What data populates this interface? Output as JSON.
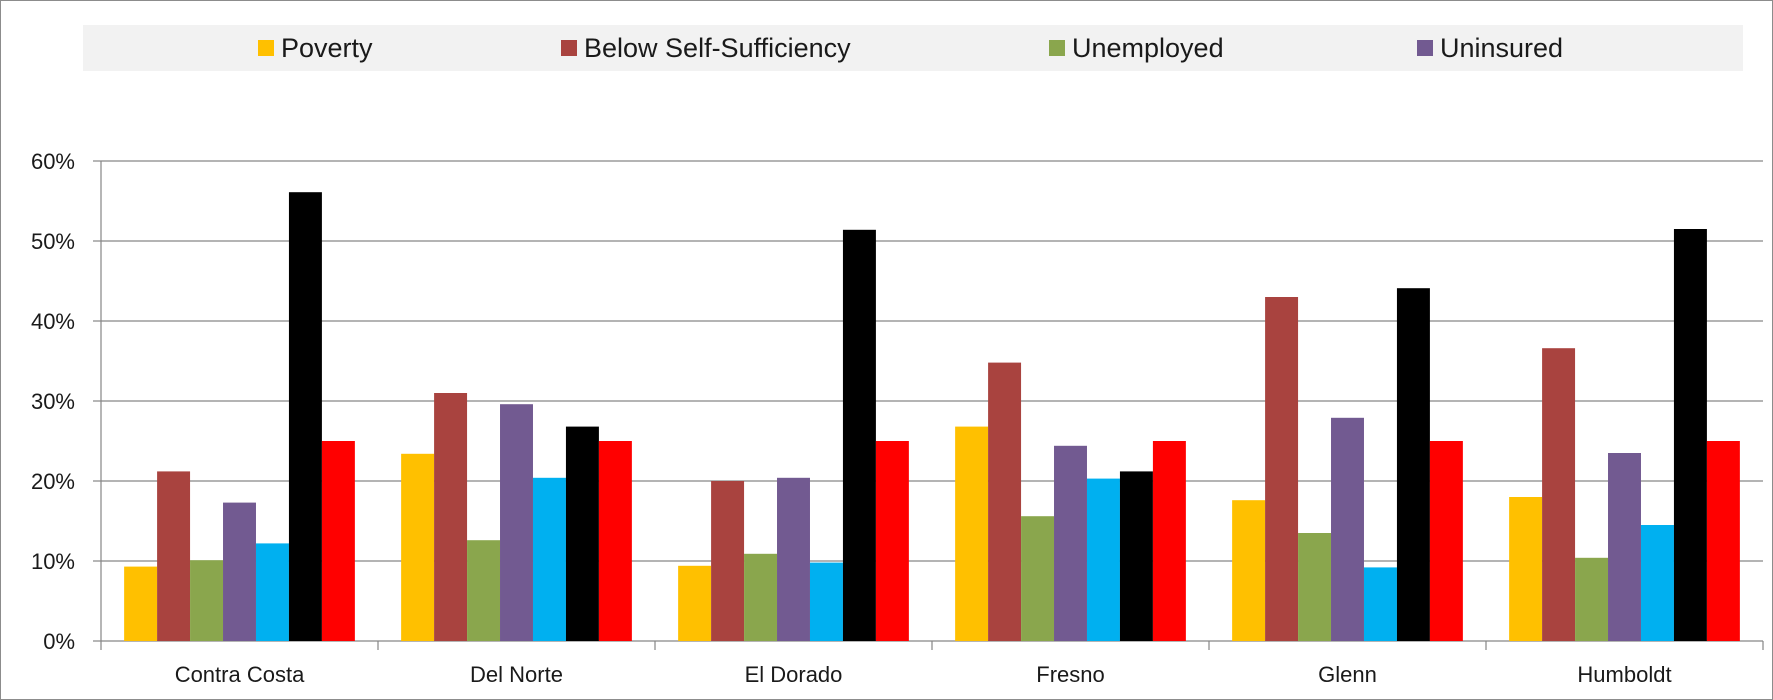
{
  "chart_data": {
    "type": "bar",
    "categories": [
      "Contra Costa",
      "Del Norte",
      "El Dorado",
      "Fresno",
      "Glenn",
      "Humboldt"
    ],
    "series": [
      {
        "name": "Poverty",
        "color": "#ffc000",
        "values": [
          9.3,
          23.4,
          9.4,
          26.8,
          17.6,
          18.0
        ]
      },
      {
        "name": "Below Self-Sufficiency",
        "color": "#a9433f",
        "values": [
          21.2,
          31.0,
          20.0,
          34.8,
          43.0,
          36.6
        ]
      },
      {
        "name": "Unemployed",
        "color": "#8aa64d",
        "values": [
          10.1,
          12.6,
          10.9,
          15.6,
          13.5,
          10.4
        ]
      },
      {
        "name": "Uninsured",
        "color": "#725a91",
        "values": [
          17.3,
          29.6,
          20.4,
          24.4,
          27.9,
          23.5
        ]
      },
      {
        "name": "",
        "color": "#00b0f0",
        "values": [
          12.2,
          20.4,
          9.8,
          20.3,
          9.2,
          14.5
        ]
      },
      {
        "name": "",
        "color": "#000000",
        "values": [
          56.1,
          26.8,
          51.4,
          21.2,
          44.1,
          51.5
        ]
      },
      {
        "name": "",
        "color": "#ff0000",
        "values": [
          25.0,
          25.0,
          25.0,
          25.0,
          25.0,
          25.0
        ]
      }
    ],
    "yticks": [
      "0%",
      "10%",
      "20%",
      "30%",
      "40%",
      "50%",
      "60%"
    ],
    "ylim": [
      0,
      60
    ],
    "grid": true,
    "legend_position": "top",
    "title": "",
    "xlabel": "",
    "ylabel": ""
  }
}
